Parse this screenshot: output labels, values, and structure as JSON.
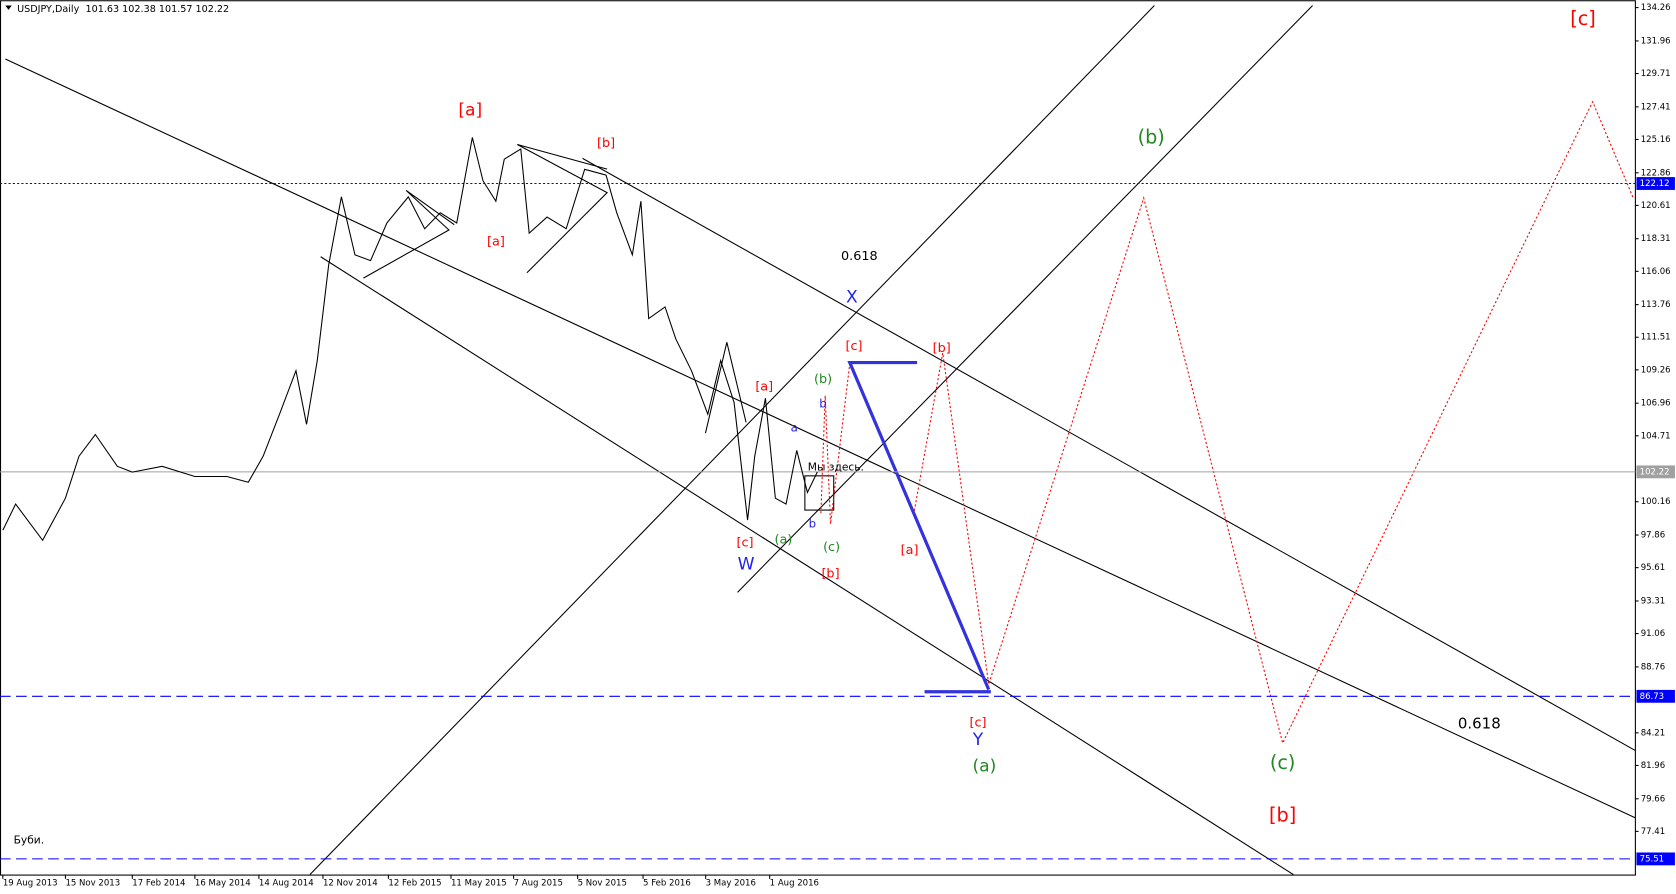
{
  "chart_data": {
    "type": "line",
    "title": "USDJPY,Daily",
    "subtitle": "101.63 102.38 101.57 102.22",
    "color": "#000000",
    "x": [
      "2013-08-19",
      "2013-09-06",
      "2013-10-14",
      "2013-11-15",
      "2013-12-04",
      "2013-12-27",
      "2014-01-27",
      "2014-02-17",
      "2014-03-31",
      "2014-05-16",
      "2014-06-30",
      "2014-07-30",
      "2014-08-20",
      "2014-09-12",
      "2014-10-05",
      "2014-10-20",
      "2014-11-04",
      "2014-11-20",
      "2014-12-08",
      "2014-12-27",
      "2015-01-18",
      "2015-02-10",
      "2015-03-12",
      "2015-04-04",
      "2015-04-26",
      "2015-05-19",
      "2015-06-10",
      "2015-06-25",
      "2015-07-13",
      "2015-07-25",
      "2015-08-17",
      "2015-08-29",
      "2015-09-23",
      "2015-10-20",
      "2015-11-15",
      "2015-12-15",
      "2015-12-30",
      "2016-01-21",
      "2016-02-02",
      "2016-02-13",
      "2016-03-07",
      "2016-03-22",
      "2016-04-13",
      "2016-05-06",
      "2016-05-24",
      "2016-06-12",
      "2016-07-01",
      "2016-07-11",
      "2016-07-26",
      "2016-08-09",
      "2016-08-24",
      "2016-09-08",
      "2016-09-23",
      "2016-10-07"
    ],
    "values": [
      98.2,
      100.0,
      97.5,
      100.4,
      103.3,
      104.8,
      102.6,
      102.2,
      102.6,
      101.9,
      101.9,
      101.5,
      103.3,
      106.2,
      109.2,
      105.5,
      109.9,
      116.5,
      121.2,
      117.2,
      116.8,
      119.4,
      121.2,
      119.0,
      120.1,
      119.4,
      125.3,
      122.3,
      120.9,
      123.8,
      124.5,
      118.7,
      119.8,
      119.0,
      123.1,
      122.7,
      120.1,
      117.2,
      120.9,
      112.8,
      113.6,
      111.4,
      109.2,
      106.2,
      109.9,
      107.0,
      98.9,
      103.3,
      107.3,
      100.4,
      100.0,
      103.7,
      100.8,
      102.22
    ],
    "xlim": [
      "2013-08-15",
      "2019-12-01"
    ],
    "xticks": [
      {
        "value": "2013-08-19",
        "label": "19 Aug 2013"
      },
      {
        "value": "2013-11-15",
        "label": "15 Nov 2013"
      },
      {
        "value": "2014-02-17",
        "label": "17 Feb 2014"
      },
      {
        "value": "2014-05-16",
        "label": "16 May 2014"
      },
      {
        "value": "2014-08-14",
        "label": "14 Aug 2014"
      },
      {
        "value": "2014-11-12",
        "label": "12 Nov 2014"
      },
      {
        "value": "2015-02-12",
        "label": "12 Feb 2015"
      },
      {
        "value": "2015-05-11",
        "label": "11 May 2015"
      },
      {
        "value": "2015-08-07",
        "label": "7 Aug 2015"
      },
      {
        "value": "2015-11-05",
        "label": "5 Nov 2015"
      },
      {
        "value": "2016-02-05",
        "label": "5 Feb 2016"
      },
      {
        "value": "2016-05-03",
        "label": "3 May 2016"
      },
      {
        "value": "2016-08-01",
        "label": "1 Aug 2016"
      }
    ],
    "ylim": [
      74.43,
      134.77
    ],
    "yticks": [
      134.26,
      131.96,
      129.71,
      127.41,
      125.16,
      122.86,
      120.61,
      118.31,
      116.06,
      113.76,
      111.51,
      109.26,
      106.96,
      104.71,
      100.16,
      97.86,
      95.61,
      93.31,
      91.06,
      88.76,
      84.21,
      81.96,
      79.66,
      77.41
    ],
    "hlines": [
      {
        "value": 122.12,
        "color": "#0000ff",
        "style": "dotted"
      },
      {
        "value": 102.22,
        "color": "#a0a0a0",
        "style": "solid"
      },
      {
        "value": 86.73,
        "color": "#0000ff",
        "style": "dashed"
      },
      {
        "value": 75.51,
        "color": "#0000ff",
        "style": "dashed"
      }
    ],
    "annotations": [
      "[a]",
      "[a]",
      "[b]",
      "0.618",
      "X",
      "[c]",
      "[b]",
      "(b)",
      "[a]",
      "b",
      "a",
      "Мы здесь.",
      "b",
      "(a)",
      "(c)",
      "[c]",
      "W",
      "[a]",
      "[b]",
      "[c]",
      "Y",
      "(a)",
      "(b)",
      "(c)",
      "[b]",
      "[c]",
      "0.618",
      "Буби."
    ]
  }
}
